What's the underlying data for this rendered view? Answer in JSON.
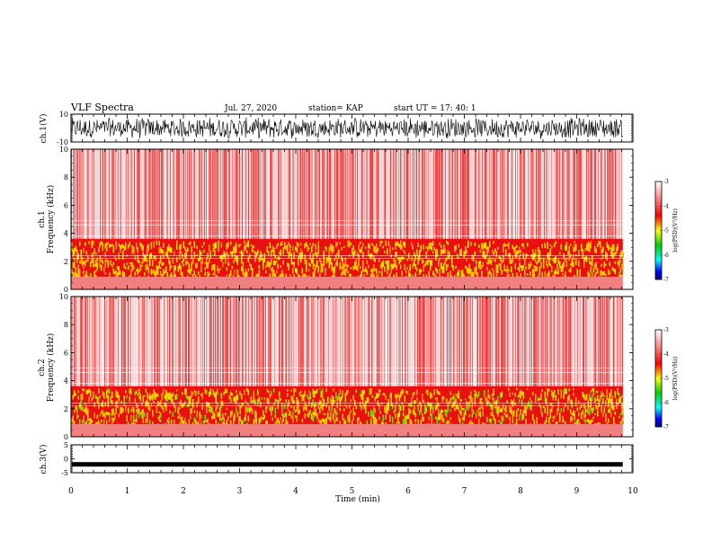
{
  "header": {
    "title": "VLF Spectra",
    "date": "Jul. 27, 2020",
    "station": "station= KAP",
    "start": "start  UT =   17: 40: 1"
  },
  "chart_data": [
    {
      "type": "line",
      "name": "ch1-waveform",
      "ylabel": "ch.1(V)",
      "ylim": [
        -10,
        10
      ],
      "yticks": [
        "10",
        "-10"
      ],
      "xlim": [
        0,
        10
      ],
      "data_end": 9.82,
      "note_shape": "dense oscillation roughly between -8 and 8 V"
    },
    {
      "type": "heatmap",
      "name": "ch1-spectrogram",
      "ylabel": "ch.1\nFrequency (kHz)",
      "ylim": [
        0,
        10
      ],
      "yticks": [
        "0",
        "2",
        "4",
        "6",
        "8",
        "10"
      ],
      "xlim": [
        0,
        10
      ],
      "data_end": 9.82,
      "colorbar": {
        "label": "log(PSD)(V²/Hz)",
        "range": [
          -7,
          -3
        ],
        "ticks": [
          "-3",
          "-4",
          "-5",
          "-6",
          "-7"
        ]
      }
    },
    {
      "type": "heatmap",
      "name": "ch2-spectrogram",
      "ylabel": "ch.2\nFrequency (kHz)",
      "ylim": [
        0,
        10
      ],
      "yticks": [
        "0",
        "2",
        "4",
        "6",
        "8",
        "10"
      ],
      "xlim": [
        0,
        10
      ],
      "data_end": 9.82,
      "colorbar": {
        "label": "log(PSD)(V²/Hz)",
        "range": [
          -7,
          -3
        ],
        "ticks": [
          "-3",
          "-4",
          "-5",
          "-6",
          "-7"
        ]
      }
    },
    {
      "type": "line",
      "name": "ch3-waveform",
      "ylabel": "ch.3(V)",
      "ylim": [
        -5,
        5
      ],
      "yticks": [
        "5",
        "0",
        "-5"
      ],
      "xlim": [
        0,
        10
      ],
      "data_end": 9.82,
      "level": -2.0,
      "xlabel": "Time (min)",
      "xticks": [
        "0",
        "1",
        "2",
        "3",
        "4",
        "5",
        "6",
        "7",
        "8",
        "9",
        "10"
      ]
    }
  ]
}
